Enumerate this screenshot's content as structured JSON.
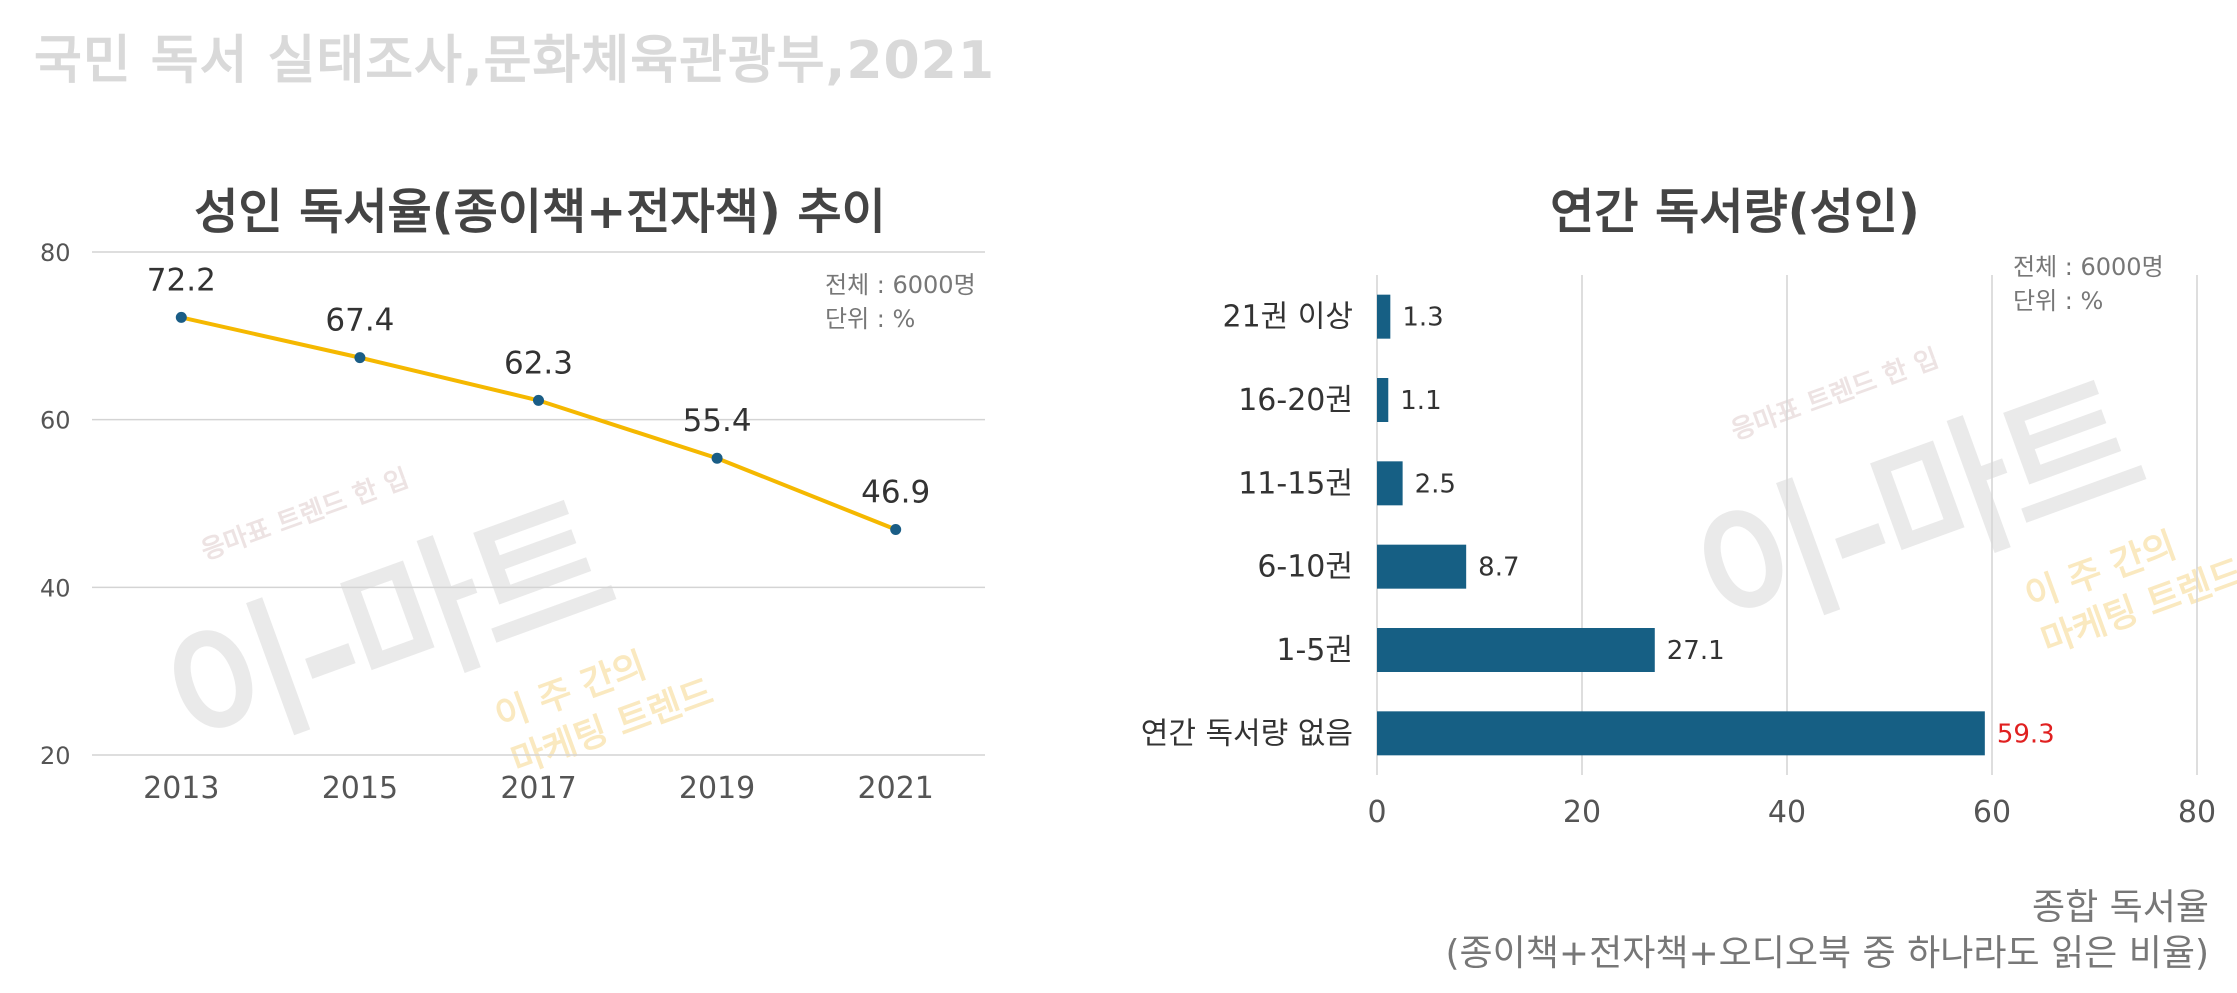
{
  "source": "국민 독서 실태조사,문화체육관광부,2021",
  "watermark": {
    "brand": "이-마트",
    "slogan": "응마표 트렌드 한 입",
    "tag_line1": "이 주 간의",
    "tag_line2": "마케팅 트렌드"
  },
  "chart_data": [
    {
      "type": "line",
      "title": "성인 독서율(종이책+전자책) 추이",
      "categories": [
        "2013",
        "2015",
        "2017",
        "2019",
        "2021"
      ],
      "values": [
        72.2,
        67.4,
        62.3,
        55.4,
        46.9
      ],
      "value_labels": [
        "72.2",
        "67.4",
        "62.3",
        "55.4",
        "46.9"
      ],
      "ylim": [
        20,
        80
      ],
      "yticks": [
        "20",
        "40",
        "60",
        "80"
      ],
      "grid": true,
      "line_color": "#f5b800",
      "marker_color": "#1a5d86",
      "note_line1": "전체 : 6000명",
      "note_line2": "단위 : %"
    },
    {
      "type": "bar",
      "orientation": "horizontal",
      "title": "연간 독서량(성인)",
      "categories": [
        "21권 이상",
        "16-20권",
        "11-15권",
        "6-10권",
        "1-5권",
        "연간 독서량 없음"
      ],
      "values": [
        1.3,
        1.1,
        2.5,
        8.7,
        27.1,
        59.3
      ],
      "value_labels": [
        "1.3",
        "1.1",
        "2.5",
        "8.7",
        "27.1",
        "59.3"
      ],
      "highlight_index": 5,
      "highlight_color": "#e02020",
      "bar_color": "#165f84",
      "xlim": [
        0,
        80
      ],
      "xticks": [
        "0",
        "20",
        "40",
        "60",
        "80"
      ],
      "grid": true,
      "note_line1": "전체 : 6000명",
      "note_line2": "단위 : %"
    }
  ],
  "footnote": {
    "line1": "종합 독서율",
    "line2": "(종이책+전자책+오디오북 중 하나라도 읽은 비율)"
  }
}
